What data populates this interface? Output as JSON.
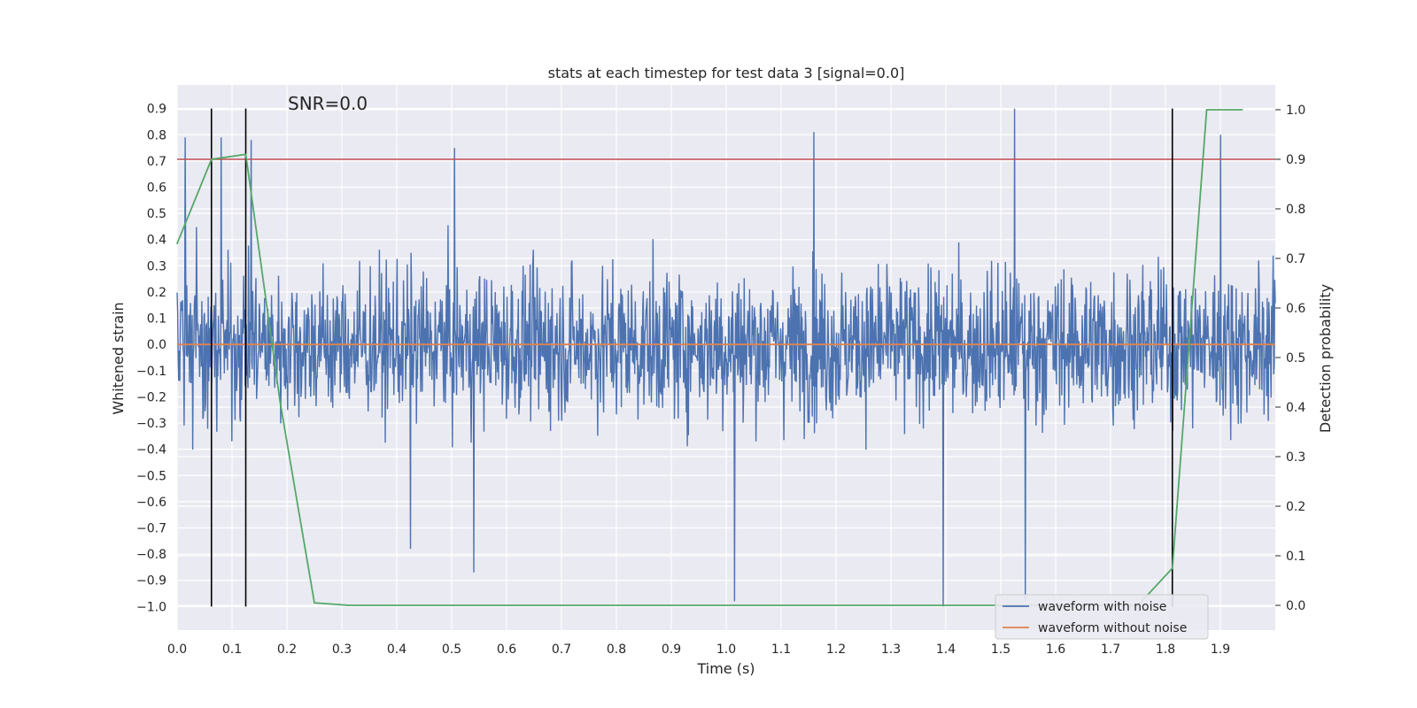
{
  "chart_data": {
    "type": "line",
    "title": "stats at each timestep for test data 3 [signal=0.0]",
    "annotation": "SNR=0.0",
    "xlabel": "Time (s)",
    "ylabel": "Whitened strain",
    "y2label": "Detection probability",
    "xlim": [
      0.0,
      2.0
    ],
    "ylim": [
      -1.09,
      0.99
    ],
    "y2lim": [
      -0.05,
      1.05
    ],
    "grid": true,
    "legend_position": "lower-right",
    "x_ticks": [
      "0.0",
      "0.1",
      "0.2",
      "0.3",
      "0.4",
      "0.5",
      "0.6",
      "0.7",
      "0.8",
      "0.9",
      "1.0",
      "1.1",
      "1.2",
      "1.3",
      "1.4",
      "1.5",
      "1.6",
      "1.7",
      "1.8",
      "1.9"
    ],
    "y_ticks": [
      "0.9",
      "0.8",
      "0.7",
      "0.6",
      "0.5",
      "0.4",
      "0.3",
      "0.2",
      "0.1",
      "0.0",
      "−0.1",
      "−0.2",
      "−0.3",
      "−0.4",
      "−0.5",
      "−0.6",
      "−0.7",
      "−0.8",
      "−0.9",
      "−1.0"
    ],
    "y2_ticks": [
      "1.0",
      "0.9",
      "0.8",
      "0.7",
      "0.6",
      "0.5",
      "0.4",
      "0.3",
      "0.2",
      "0.1",
      "0.0"
    ],
    "series": [
      {
        "name": "waveform with noise",
        "color": "#4c72b0",
        "kind": "noise",
        "x_range": [
          0.0,
          2.0
        ],
        "samples": 2048,
        "amplitude_envelope": [
          -1.0,
          0.9
        ],
        "peaks": [
          {
            "x": 0.015,
            "y": 0.79
          },
          {
            "x": 0.08,
            "y": 0.79
          },
          {
            "x": 0.135,
            "y": 0.78
          },
          {
            "x": 0.505,
            "y": 0.75
          },
          {
            "x": 1.16,
            "y": 0.81
          },
          {
            "x": 1.525,
            "y": 0.9
          },
          {
            "x": 1.9,
            "y": 0.8
          },
          {
            "x": 1.015,
            "y": -0.98
          },
          {
            "x": 1.395,
            "y": -1.0
          },
          {
            "x": 1.545,
            "y": -0.98
          },
          {
            "x": 0.54,
            "y": -0.87
          },
          {
            "x": 0.425,
            "y": -0.78
          }
        ]
      },
      {
        "name": "waveform without noise",
        "color": "#dd8452",
        "kind": "line",
        "x": [
          0.0,
          2.0
        ],
        "y": [
          0.0,
          0.0
        ]
      },
      {
        "name": "",
        "color": "#55a868",
        "kind": "probability",
        "axis": "right",
        "x": [
          0.0,
          0.0625,
          0.125,
          0.1875,
          0.25,
          0.3125,
          1.75,
          1.8125,
          1.875,
          1.94
        ],
        "y": [
          0.73,
          0.9,
          0.91,
          0.41,
          0.005,
          0.0,
          0.0,
          0.075,
          1.0,
          1.0
        ]
      }
    ],
    "threshold": {
      "axis": "right",
      "value": 0.9,
      "color": "#c44e52"
    },
    "vertical_markers": {
      "x": [
        0.0625,
        0.125,
        1.8125
      ],
      "y_from": -1.0,
      "y_to": 0.9,
      "color": "#000000"
    }
  }
}
